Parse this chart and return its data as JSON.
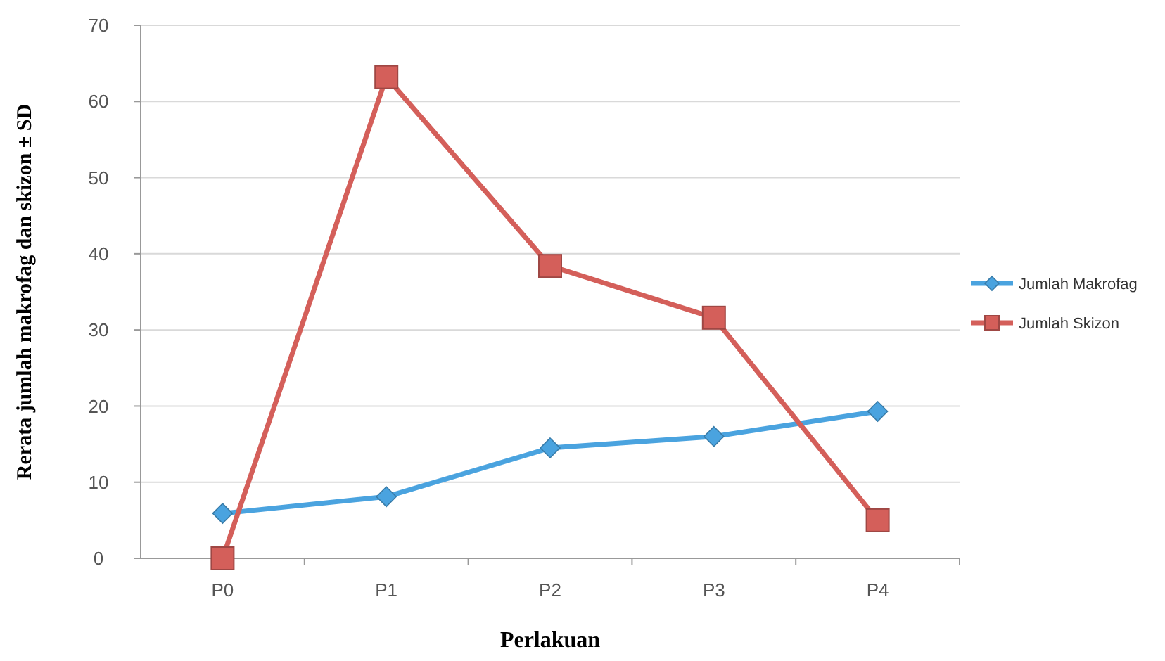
{
  "chart_data": {
    "type": "line",
    "xlabel": "Perlakuan",
    "ylabel": "Rerata jumlah makrofag dan skizon ± SD",
    "categories": [
      "P0",
      "P1",
      "P2",
      "P3",
      "P4"
    ],
    "series": [
      {
        "name": "Jumlah Makrofag",
        "color": "#4aa3df",
        "marker": "diamond",
        "values": [
          5.9,
          8.1,
          14.5,
          16,
          19.3
        ]
      },
      {
        "name": "Jumlah Skizon",
        "color": "#d45f5a",
        "marker": "square",
        "values": [
          0,
          63.2,
          38.4,
          31.6,
          5
        ]
      }
    ],
    "ylim": [
      0,
      70
    ],
    "yticks": [
      0,
      10,
      20,
      30,
      40,
      50,
      60,
      70
    ],
    "grid": "y",
    "legend": "right",
    "line_style": "solid"
  }
}
